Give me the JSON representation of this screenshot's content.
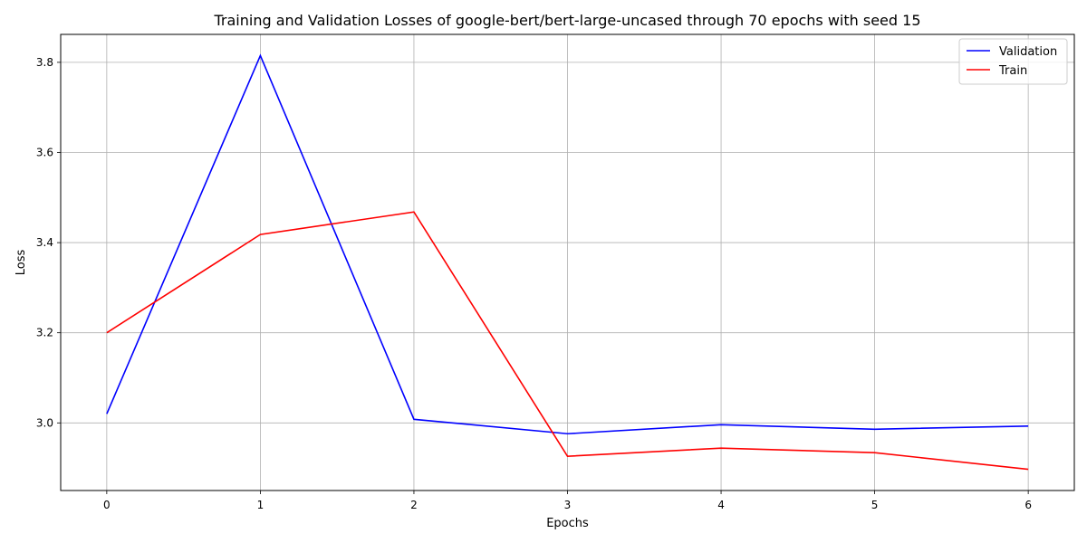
{
  "chart_data": {
    "type": "line",
    "title": "Training and Validation Losses of google-bert/bert-large-uncased through 70 epochs with seed 15",
    "xlabel": "Epochs",
    "ylabel": "Loss",
    "x": [
      0,
      1,
      2,
      3,
      4,
      5,
      6
    ],
    "x_ticks": [
      "0",
      "1",
      "2",
      "3",
      "4",
      "5",
      "6"
    ],
    "y_ticks": [
      "3.0",
      "3.2",
      "3.4",
      "3.6",
      "3.8"
    ],
    "y_tick_values": [
      3.0,
      3.2,
      3.4,
      3.6,
      3.8
    ],
    "xlim": [
      -0.3,
      6.3
    ],
    "ylim": [
      2.85,
      3.862
    ],
    "grid": true,
    "legend_position": "top-right",
    "series": [
      {
        "name": "Validation",
        "color": "#0000ff",
        "values": [
          3.02,
          3.815,
          3.008,
          2.976,
          2.996,
          2.986,
          2.993
        ]
      },
      {
        "name": "Train",
        "color": "#ff0000",
        "values": [
          3.2,
          3.418,
          3.468,
          2.926,
          2.944,
          2.934,
          2.897
        ]
      }
    ]
  }
}
